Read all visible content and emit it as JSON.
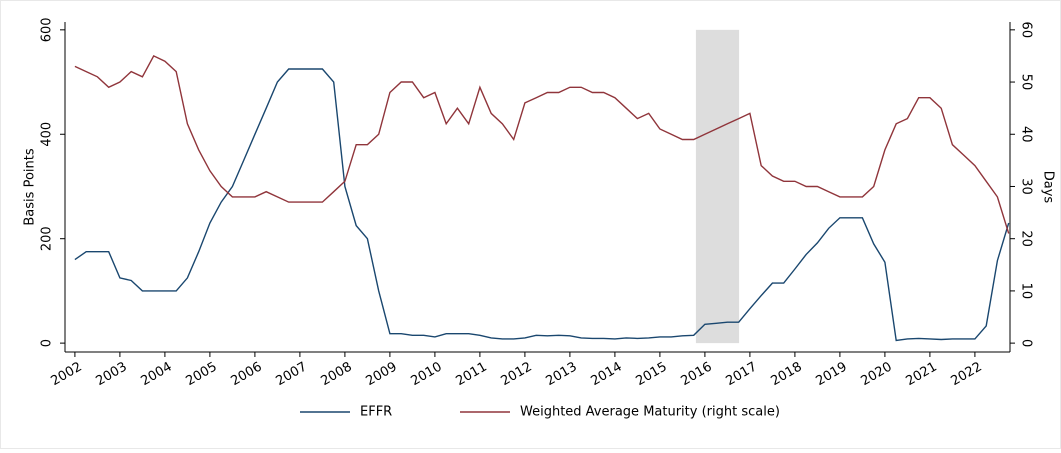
{
  "chart_data": {
    "type": "line",
    "y_label": "Basis Points",
    "y2_label": "Days",
    "x": [
      2002,
      2002.25,
      2002.5,
      2002.75,
      2003,
      2003.25,
      2003.5,
      2003.75,
      2004,
      2004.25,
      2004.5,
      2004.75,
      2005,
      2005.25,
      2005.5,
      2005.75,
      2006,
      2006.25,
      2006.5,
      2006.75,
      2007,
      2007.25,
      2007.5,
      2007.75,
      2008,
      2008.25,
      2008.5,
      2008.75,
      2009,
      2009.25,
      2009.5,
      2009.75,
      2010,
      2010.25,
      2010.5,
      2010.75,
      2011,
      2011.25,
      2011.5,
      2011.75,
      2012,
      2012.25,
      2012.5,
      2012.75,
      2013,
      2013.25,
      2013.5,
      2013.75,
      2014,
      2014.25,
      2014.5,
      2014.75,
      2015,
      2015.25,
      2015.5,
      2015.75,
      2016,
      2016.25,
      2016.5,
      2016.75,
      2017,
      2017.25,
      2017.5,
      2017.75,
      2018,
      2018.25,
      2018.5,
      2018.75,
      2019,
      2019.25,
      2019.5,
      2019.75,
      2020,
      2020.25,
      2020.5,
      2020.75,
      2021,
      2021.25,
      2021.5,
      2021.75,
      2022,
      2022.25,
      2022.5,
      2022.75
    ],
    "series": [
      {
        "name": "EFFR",
        "color": "#1a476f",
        "values": [
          160,
          175,
          175,
          175,
          125,
          120,
          100,
          100,
          100,
          100,
          125,
          175,
          230,
          270,
          300,
          350,
          400,
          450,
          500,
          525,
          525,
          525,
          525,
          500,
          300,
          225,
          200,
          100,
          18,
          18,
          15,
          15,
          12,
          18,
          18,
          18,
          15,
          10,
          8,
          8,
          10,
          15,
          14,
          15,
          14,
          10,
          9,
          9,
          8,
          10,
          9,
          10,
          12,
          12,
          14,
          15,
          36,
          38,
          40,
          40,
          66,
          91,
          115,
          115,
          142,
          170,
          192,
          220,
          240,
          240,
          240,
          190,
          155,
          5,
          8,
          9,
          8,
          7,
          8,
          8,
          8,
          33,
          158,
          230
        ]
      },
      {
        "name": "Weighted Average Maturity (right scale)",
        "color": "#90353b",
        "axis": "y2",
        "values": [
          53,
          52,
          51,
          49,
          50,
          52,
          51,
          55,
          54,
          52,
          42,
          37,
          33,
          30,
          28,
          28,
          28,
          29,
          28,
          27,
          27,
          27,
          27,
          29,
          31,
          38,
          38,
          40,
          48,
          50,
          50,
          47,
          48,
          42,
          45,
          42,
          49,
          44,
          42,
          39,
          46,
          47,
          48,
          48,
          49,
          49,
          48,
          48,
          47,
          45,
          43,
          44,
          41,
          40,
          39,
          39,
          40,
          41,
          42,
          43,
          44,
          34,
          32,
          31,
          31,
          30,
          30,
          29,
          28,
          28,
          28,
          30,
          37,
          42,
          43,
          47,
          47,
          45,
          38,
          36,
          34,
          31,
          28,
          21
        ]
      }
    ],
    "shaded_span": [
      2015.8,
      2016.76
    ],
    "xlim": [
      2001.78,
      2022.78
    ],
    "xticks": [
      2002,
      2003,
      2004,
      2005,
      2006,
      2007,
      2008,
      2009,
      2010,
      2011,
      2012,
      2013,
      2014,
      2015,
      2016,
      2017,
      2018,
      2019,
      2020,
      2021,
      2022
    ],
    "ylim": [
      -17,
      615
    ],
    "yticks": [
      0,
      200,
      400,
      600
    ],
    "y2lim": [
      -1.7,
      61.5
    ],
    "y2ticks": [
      0,
      10,
      20,
      30,
      40,
      50,
      60
    ],
    "legend": "bottom"
  }
}
